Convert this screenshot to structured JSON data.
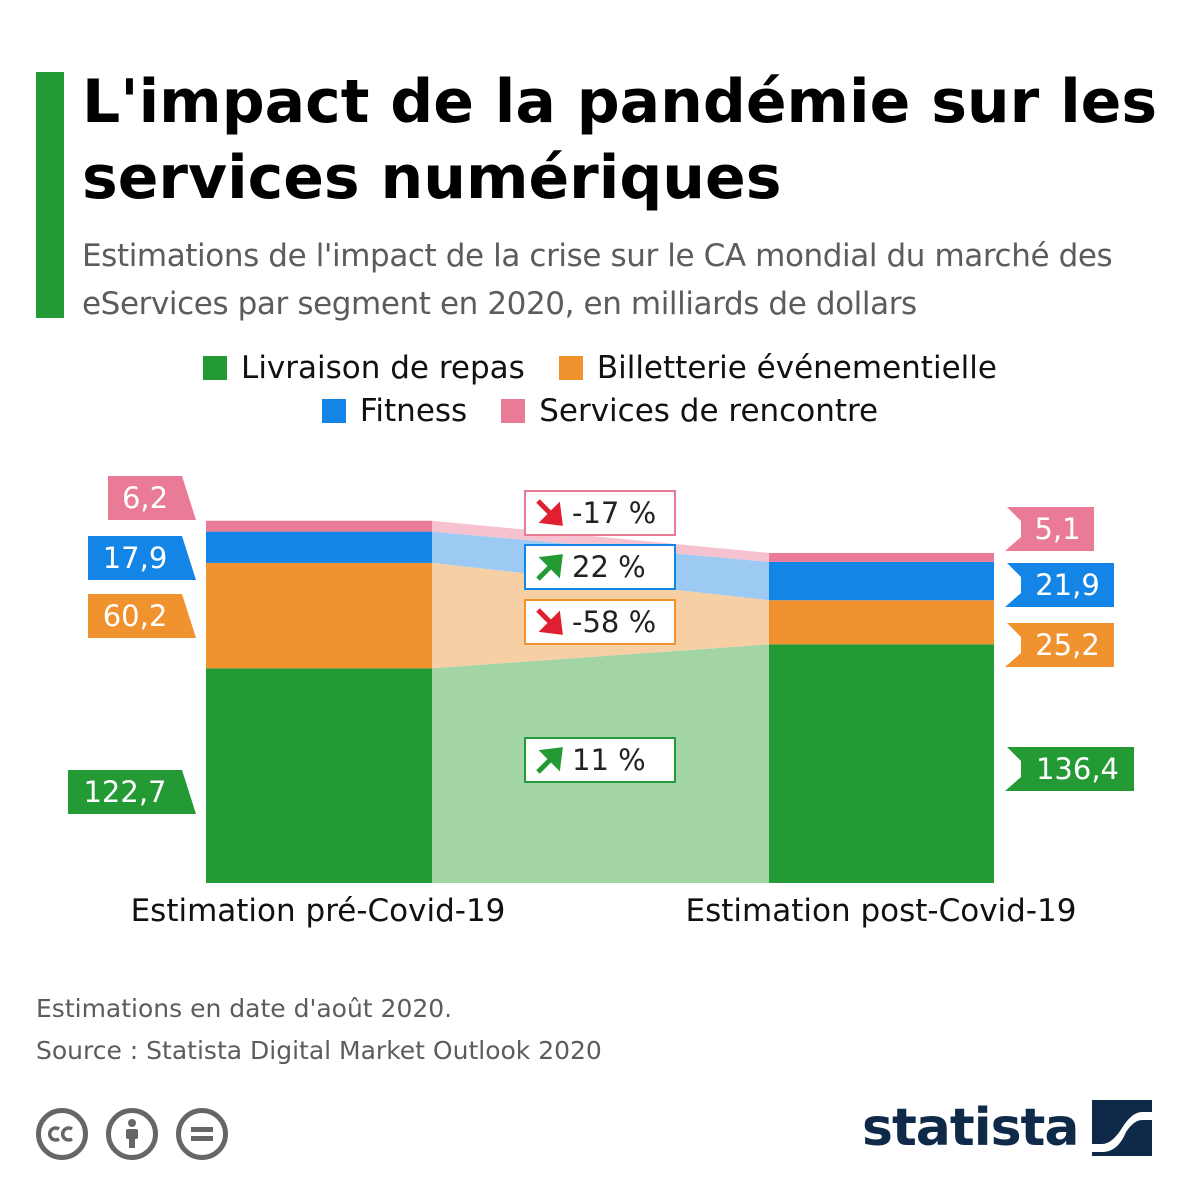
{
  "title": "L'impact de la pandémie sur les services numériques",
  "subtitle": "Estimations de l'impact de la crise sur le CA mondial du marché des eServices par segment en 2020, en milliards de dollars",
  "legend": [
    {
      "label": "Livraison de repas",
      "color": "#249a35"
    },
    {
      "label": "Billetterie événementielle",
      "color": "#f0922e"
    },
    {
      "label": "Fitness",
      "color": "#1285e6"
    },
    {
      "label": "Services de rencontre",
      "color": "#ea7b97"
    }
  ],
  "chart_data": {
    "type": "bar",
    "stacked": true,
    "categories": [
      "Estimation pré-Covid-19",
      "Estimation post-Covid-19"
    ],
    "series": [
      {
        "name": "Livraison de repas",
        "values": [
          122.7,
          136.4
        ],
        "labels": [
          "122,7",
          "136,4"
        ],
        "change": "11 %",
        "direction": "up",
        "color": "#249a35",
        "light_color": "#a2d4a6"
      },
      {
        "name": "Billetterie événementielle",
        "values": [
          60.2,
          25.2
        ],
        "labels": [
          "60,2",
          "25,2"
        ],
        "change": "-58 %",
        "direction": "down",
        "color": "#f0922e",
        "light_color": "#f7cfa5"
      },
      {
        "name": "Fitness",
        "values": [
          17.9,
          21.9
        ],
        "labels": [
          "17,9",
          "21,9"
        ],
        "change": "22 %",
        "direction": "up",
        "color": "#1285e6",
        "light_color": "#9dcaf3"
      },
      {
        "name": "Services de rencontre",
        "values": [
          6.2,
          5.1
        ],
        "labels": [
          "6,2",
          "5,1"
        ],
        "change": "-17 %",
        "direction": "down",
        "color": "#ea7b97",
        "light_color": "#f6c2cf"
      }
    ],
    "ylim": [
      0,
      210
    ],
    "grid": false,
    "legend_position": "top"
  },
  "footnote": "Estimations en date d'août 2020.",
  "source": "Source : Statista Digital Market Outlook 2020",
  "brand": "statista",
  "icons": [
    "cc-icon",
    "person-icon",
    "equal-icon",
    "statista-logo-icon"
  ]
}
